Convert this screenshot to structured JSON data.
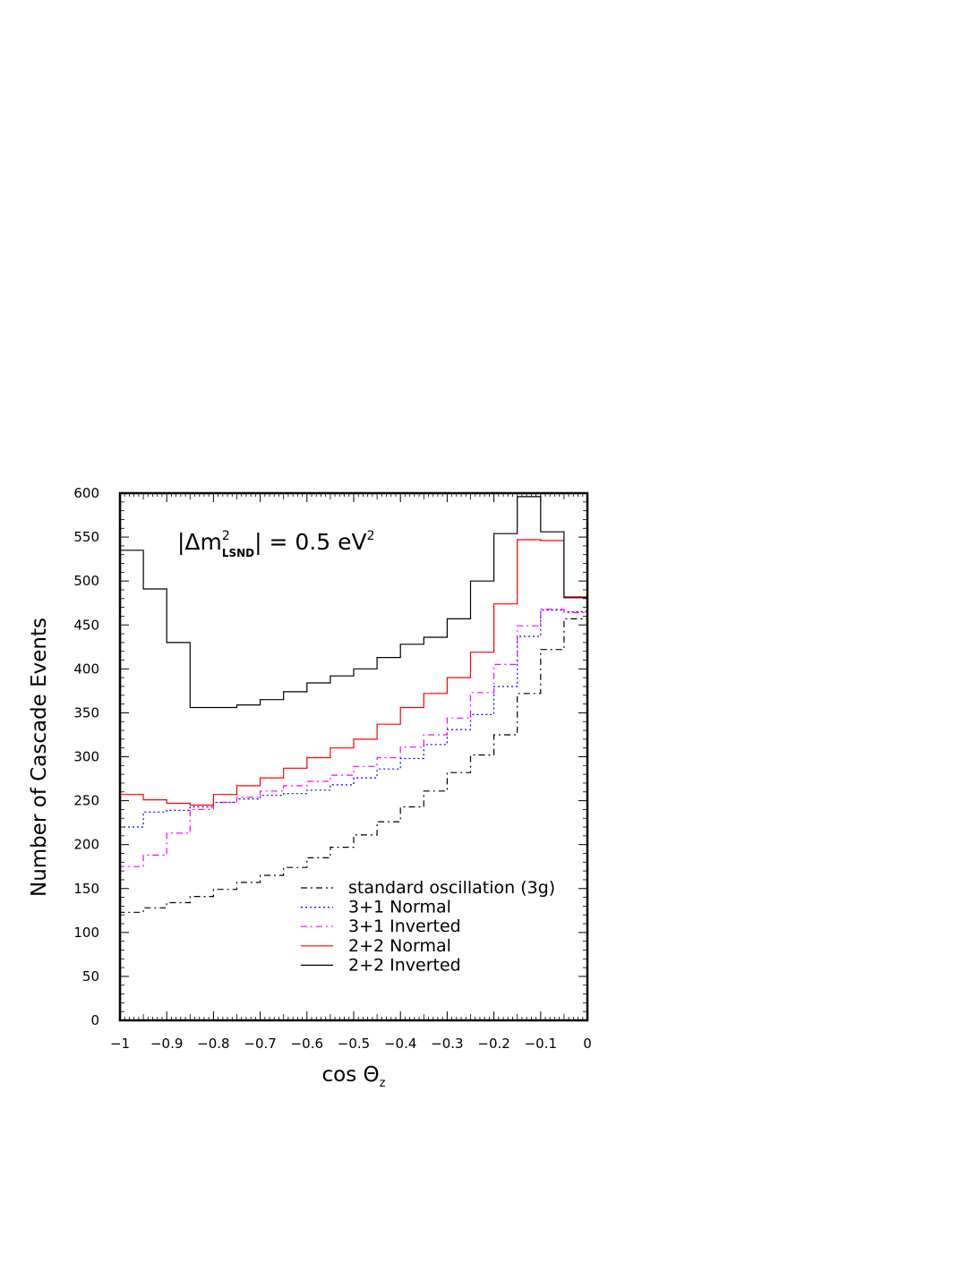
{
  "chart_data": {
    "type": "line",
    "title": "",
    "annotation": {
      "prefix": "|Δm",
      "sup": "2",
      "sub": "LSND",
      "suffix": "| = 0.5 eV",
      "suffix_sup": "2"
    },
    "xlabel": {
      "main": "cos Θ",
      "sub": "z"
    },
    "ylabel": "Number of Cascade Events",
    "xlim": [
      -1,
      0
    ],
    "ylim": [
      0,
      600
    ],
    "xticks": [
      -1,
      -0.9,
      -0.8,
      -0.7,
      -0.6,
      -0.5,
      -0.4,
      -0.3,
      -0.2,
      -0.1,
      0
    ],
    "xtick_labels": [
      "−1",
      "−0.9",
      "−0.8",
      "−0.7",
      "−0.6",
      "−0.5",
      "−0.4",
      "−0.3",
      "−0.2",
      "−0.1",
      "0"
    ],
    "yticks": [
      0,
      50,
      100,
      150,
      200,
      250,
      300,
      350,
      400,
      450,
      500,
      550,
      600
    ],
    "ytick_labels": [
      "0",
      "50",
      "100",
      "150",
      "200",
      "250",
      "300",
      "350",
      "400",
      "450",
      "500",
      "550",
      "600"
    ],
    "grid": false,
    "legend_position": "bottom-right",
    "bin_edges": [
      -1,
      -0.95,
      -0.9,
      -0.85,
      -0.8,
      -0.75,
      -0.7,
      -0.65,
      -0.6,
      -0.55,
      -0.5,
      -0.45,
      -0.4,
      -0.35,
      -0.3,
      -0.25,
      -0.2,
      -0.15,
      -0.1,
      -0.05,
      0
    ],
    "series": [
      {
        "name": "standard oscillation (3g)",
        "color": "#000000",
        "dash": "dashdot",
        "values": [
          123,
          128,
          134,
          141,
          149,
          157,
          165,
          174,
          185,
          197,
          211,
          226,
          243,
          261,
          282,
          302,
          325,
          372,
          422,
          457
        ]
      },
      {
        "name": "3+1 Normal",
        "color": "#0000ff",
        "dash": "dotted",
        "values": [
          220,
          237,
          239,
          243,
          248,
          252,
          256,
          258,
          262,
          268,
          276,
          286,
          298,
          314,
          331,
          348,
          380,
          437,
          467,
          465
        ]
      },
      {
        "name": "3+1 Inverted",
        "color": "#ff00ff",
        "dash": "dashdot",
        "values": [
          175,
          188,
          213,
          240,
          248,
          254,
          261,
          267,
          272,
          279,
          289,
          299,
          311,
          325,
          344,
          373,
          405,
          449,
          468,
          464
        ]
      },
      {
        "name": "2+2 Normal",
        "color": "#ff0000",
        "dash": "solid",
        "values": [
          257,
          251,
          247,
          245,
          257,
          267,
          276,
          287,
          299,
          310,
          320,
          337,
          356,
          372,
          390,
          419,
          474,
          547,
          546,
          482
        ]
      },
      {
        "name": "2+2 Inverted",
        "color": "#000000",
        "dash": "solid",
        "values": [
          535,
          491,
          430,
          356,
          356,
          359,
          365,
          374,
          384,
          392,
          400,
          413,
          428,
          436,
          457,
          500,
          554,
          596,
          556,
          481
        ]
      }
    ]
  }
}
